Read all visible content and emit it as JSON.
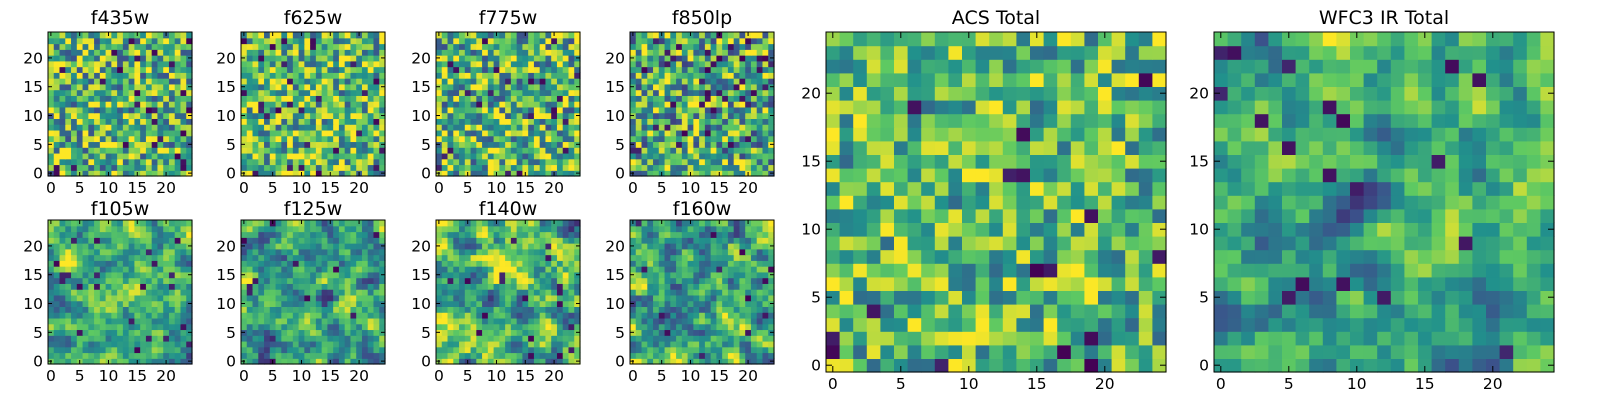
{
  "figure": {
    "colormap": "viridis",
    "grid_size": 25,
    "colormap_stops": [
      "#440154",
      "#3b528b",
      "#21918c",
      "#5ec962",
      "#fde725"
    ]
  },
  "chart_data": [
    {
      "type": "heatmap",
      "title": "f435w",
      "xticks": [
        "0",
        "5",
        "10",
        "15",
        "20"
      ],
      "yticks": [
        "0",
        "5",
        "10",
        "15",
        "20"
      ],
      "xlim": [
        0,
        24
      ],
      "ylim": [
        0,
        24
      ],
      "texture": "speckle",
      "seed": 11,
      "mean": 0.66,
      "spread": 0.42,
      "dark_fraction": 0.04
    },
    {
      "type": "heatmap",
      "title": "f625w",
      "xticks": [
        "0",
        "5",
        "10",
        "15",
        "20"
      ],
      "yticks": [
        "0",
        "5",
        "10",
        "15",
        "20"
      ],
      "xlim": [
        0,
        24
      ],
      "ylim": [
        0,
        24
      ],
      "texture": "speckle",
      "seed": 23,
      "mean": 0.68,
      "spread": 0.4,
      "dark_fraction": 0.04
    },
    {
      "type": "heatmap",
      "title": "f775w",
      "xticks": [
        "0",
        "5",
        "10",
        "15",
        "20"
      ],
      "yticks": [
        "0",
        "5",
        "10",
        "15",
        "20"
      ],
      "xlim": [
        0,
        24
      ],
      "ylim": [
        0,
        24
      ],
      "texture": "speckle",
      "seed": 37,
      "mean": 0.66,
      "spread": 0.42,
      "dark_fraction": 0.03
    },
    {
      "type": "heatmap",
      "title": "f850lp",
      "xticks": [
        "0",
        "5",
        "10",
        "15",
        "20"
      ],
      "yticks": [
        "0",
        "5",
        "10",
        "15",
        "20"
      ],
      "xlim": [
        0,
        24
      ],
      "ylim": [
        0,
        24
      ],
      "texture": "speckle",
      "seed": 41,
      "mean": 0.62,
      "spread": 0.42,
      "dark_fraction": 0.06
    },
    {
      "type": "heatmap",
      "title": "f105w",
      "xticks": [
        "0",
        "5",
        "10",
        "15",
        "20"
      ],
      "yticks": [
        "0",
        "5",
        "10",
        "15",
        "20"
      ],
      "xlim": [
        0,
        24
      ],
      "ylim": [
        0,
        24
      ],
      "texture": "smooth",
      "seed": 53,
      "mean": 0.64,
      "spread": 0.45,
      "dark_fraction": 0.03
    },
    {
      "type": "heatmap",
      "title": "f125w",
      "xticks": [
        "0",
        "5",
        "10",
        "15",
        "20"
      ],
      "yticks": [
        "0",
        "5",
        "10",
        "15",
        "20"
      ],
      "xlim": [
        0,
        24
      ],
      "ylim": [
        0,
        24
      ],
      "texture": "smooth",
      "seed": 67,
      "mean": 0.58,
      "spread": 0.45,
      "dark_fraction": 0.04
    },
    {
      "type": "heatmap",
      "title": "f140w",
      "xticks": [
        "0",
        "5",
        "10",
        "15",
        "20"
      ],
      "yticks": [
        "0",
        "5",
        "10",
        "15",
        "20"
      ],
      "xlim": [
        0,
        24
      ],
      "ylim": [
        0,
        24
      ],
      "texture": "smooth",
      "seed": 79,
      "mean": 0.62,
      "spread": 0.48,
      "dark_fraction": 0.03
    },
    {
      "type": "heatmap",
      "title": "f160w",
      "xticks": [
        "0",
        "5",
        "10",
        "15",
        "20"
      ],
      "yticks": [
        "0",
        "5",
        "10",
        "15",
        "20"
      ],
      "xlim": [
        0,
        24
      ],
      "ylim": [
        0,
        24
      ],
      "texture": "smooth",
      "seed": 83,
      "mean": 0.64,
      "spread": 0.48,
      "dark_fraction": 0.03
    },
    {
      "type": "heatmap",
      "title": "ACS Total",
      "xticks": [
        "0",
        "5",
        "10",
        "15",
        "20"
      ],
      "yticks": [
        "0",
        "5",
        "10",
        "15",
        "20"
      ],
      "xlim": [
        0,
        24
      ],
      "ylim": [
        0,
        24
      ],
      "texture": "speckle",
      "seed": 97,
      "mean": 0.68,
      "spread": 0.34,
      "dark_fraction": 0.02
    },
    {
      "type": "heatmap",
      "title": "WFC3 IR Total",
      "xticks": [
        "0",
        "5",
        "10",
        "15",
        "20"
      ],
      "yticks": [
        "0",
        "5",
        "10",
        "15",
        "20"
      ],
      "xlim": [
        0,
        24
      ],
      "ylim": [
        0,
        24
      ],
      "texture": "smooth",
      "seed": 101,
      "mean": 0.6,
      "spread": 0.44,
      "dark_fraction": 0.02
    }
  ]
}
